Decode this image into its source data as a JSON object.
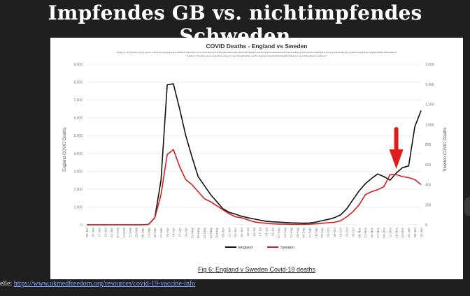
{
  "slide": {
    "title": "Impfendes GB vs. nichtimpfendes Schweden",
    "source_label": "elle:",
    "source_url": "https://www.ukmedfreedom.org/resources/covid-19-vaccine-info"
  },
  "chart_data": {
    "type": "line",
    "title": "COVID Deaths - England vs Sweden",
    "subtitle_lines": [
      "https://www.ons.gov.uk/peoplepopulationandcommunity/birthsdeathsandmarriages/deaths/datasets/weeklyprovisionalfiguresondeathsregisteredinenglandandwales",
      "https://www.socialstyrelsen.se/statistik-och-data/statistik/statistikamnen/dodsorsaker/"
    ],
    "ylabel_left": "England COVID Deaths",
    "ylabel_right": "Sweden COVID Deaths",
    "ylim_left": [
      0,
      9000
    ],
    "ylim_right": [
      0,
      1600
    ],
    "yticks_left": [
      "0",
      "1,000",
      "2,000",
      "3,000",
      "4,000",
      "5,000",
      "6,000",
      "7,000",
      "8,000",
      "9,000"
    ],
    "yticks_right": [
      "0",
      "200",
      "400",
      "600",
      "800",
      "1,000",
      "1,200",
      "1,400",
      "1,600"
    ],
    "x": [
      "03-Jan",
      "10-Jan",
      "17-Jan",
      "24-Jan",
      "31-Jan",
      "07-Feb",
      "14-Feb",
      "21-Feb",
      "28-Feb",
      "06-Mar",
      "13-Mar",
      "20-Mar",
      "27-Mar",
      "03-Apr",
      "10-Apr",
      "17-Apr",
      "24-Apr",
      "01-May",
      "08-May",
      "15-May",
      "22-May",
      "29-May",
      "05-Jun",
      "12-Jun",
      "19-Jun",
      "26-Jun",
      "03-Jul",
      "10-Jul",
      "17-Jul",
      "24-Jul",
      "31-Jul",
      "07-Aug",
      "14-Aug",
      "21-Aug",
      "28-Aug",
      "04-Sep",
      "11-Sep",
      "18-Sep",
      "25-Sep",
      "02-Oct",
      "09-Oct",
      "16-Oct",
      "23-Oct",
      "30-Oct",
      "06-Nov",
      "13-Nov",
      "20-Nov",
      "27-Nov",
      "04-Dec",
      "11-Dec",
      "18-Dec",
      "25-Dec",
      "01-Jan",
      "08-Jan",
      "15-Jan"
    ],
    "series": [
      {
        "name": "England",
        "axis": "left",
        "color": "#111111",
        "values": [
          0,
          0,
          0,
          0,
          0,
          0,
          0,
          0,
          0,
          0,
          20,
          400,
          2500,
          7850,
          7900,
          6500,
          5000,
          3800,
          2700,
          2200,
          1700,
          1300,
          900,
          700,
          600,
          480,
          400,
          330,
          260,
          200,
          170,
          150,
          130,
          110,
          100,
          90,
          100,
          150,
          230,
          300,
          400,
          550,
          900,
          1400,
          1900,
          2300,
          2600,
          2850,
          2700,
          2500,
          2900,
          3200,
          3300,
          5500,
          6400
        ]
      },
      {
        "name": "Sweden",
        "axis": "right",
        "color": "#d42020",
        "values": [
          0,
          0,
          0,
          0,
          0,
          0,
          0,
          0,
          0,
          0,
          5,
          70,
          300,
          700,
          750,
          580,
          450,
          400,
          330,
          260,
          230,
          190,
          150,
          110,
          80,
          70,
          50,
          30,
          20,
          15,
          10,
          8,
          6,
          5,
          4,
          4,
          6,
          10,
          15,
          20,
          25,
          40,
          80,
          130,
          200,
          300,
          330,
          350,
          380,
          500,
          500,
          480,
          470,
          450,
          400
        ]
      }
    ],
    "legend": [
      "England",
      "Sweden"
    ],
    "legend_position": "bottom",
    "figure_caption": "Fig 6: England v Sweden Covid-19 deaths",
    "annotation": "red-down-arrow",
    "annotation_date": "18-Dec",
    "grid": true
  }
}
